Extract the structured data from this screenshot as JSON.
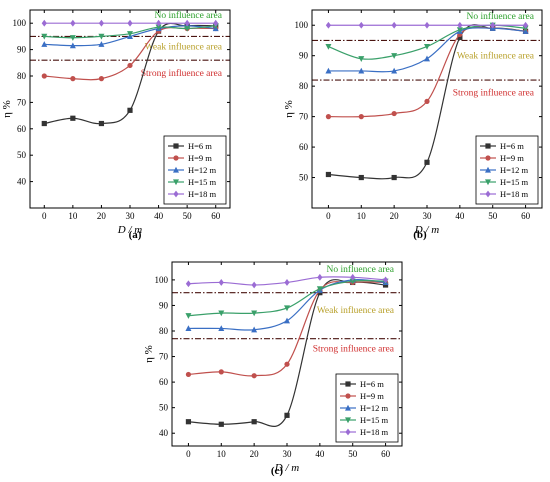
{
  "chart_data": [
    {
      "panel": "(a)",
      "type": "line",
      "x": [
        0,
        10,
        20,
        30,
        40,
        50,
        60
      ],
      "xlabel": "D / m",
      "ylabel": "η %",
      "xlim": [
        -5,
        65
      ],
      "ylim": [
        30,
        105
      ],
      "xticks": [
        0,
        10,
        20,
        30,
        40,
        50,
        60
      ],
      "yticks": [
        40,
        50,
        60,
        70,
        80,
        90,
        100
      ],
      "thresholds": [
        95,
        86
      ],
      "zones": [
        {
          "label": "No influence area",
          "color": "#2ca02c",
          "y": 102
        },
        {
          "label": "Weak influence area",
          "color": "#b8a02a",
          "y": 90
        },
        {
          "label": "Strong influence area",
          "color": "#d03030",
          "y": 80
        }
      ],
      "series": [
        {
          "name": "H=6 m",
          "color": "#333333",
          "marker": "square",
          "values": [
            62,
            64,
            62,
            67,
            97,
            99,
            99
          ]
        },
        {
          "name": "H=9 m",
          "color": "#c0504d",
          "marker": "circle",
          "values": [
            80,
            79,
            79,
            84,
            97,
            98,
            98
          ]
        },
        {
          "name": "H=12 m",
          "color": "#3a6fc4",
          "marker": "triangle",
          "values": [
            92,
            91.5,
            92,
            95,
            98,
            99,
            98
          ]
        },
        {
          "name": "H=15 m",
          "color": "#3aa06a",
          "marker": "triangle-down",
          "values": [
            95,
            94.5,
            95,
            96,
            98.5,
            98,
            99
          ]
        },
        {
          "name": "H=18 m",
          "color": "#9b6cd4",
          "marker": "diamond",
          "values": [
            100,
            100,
            100,
            100,
            100,
            100,
            100
          ]
        }
      ]
    },
    {
      "panel": "(b)",
      "type": "line",
      "x": [
        0,
        10,
        20,
        30,
        40,
        50,
        60
      ],
      "xlabel": "D / m",
      "ylabel": "η %",
      "xlim": [
        -5,
        65
      ],
      "ylim": [
        40,
        105
      ],
      "xticks": [
        0,
        10,
        20,
        30,
        40,
        50,
        60
      ],
      "yticks": [
        50,
        60,
        70,
        80,
        90,
        100
      ],
      "thresholds": [
        95,
        82
      ],
      "zones": [
        {
          "label": "No influence area",
          "color": "#2ca02c",
          "y": 102
        },
        {
          "label": "Weak influence area",
          "color": "#b8a02a",
          "y": 89
        },
        {
          "label": "Strong influence area",
          "color": "#d03030",
          "y": 77
        }
      ],
      "series": [
        {
          "name": "H=6 m",
          "color": "#333333",
          "marker": "square",
          "values": [
            51,
            50,
            50,
            55,
            96,
            99,
            98
          ]
        },
        {
          "name": "H=9 m",
          "color": "#c0504d",
          "marker": "circle",
          "values": [
            70,
            70,
            71,
            75,
            97,
            99,
            98
          ]
        },
        {
          "name": "H=12 m",
          "color": "#3a6fc4",
          "marker": "triangle",
          "values": [
            85,
            85,
            85,
            89,
            98,
            99,
            98
          ]
        },
        {
          "name": "H=15 m",
          "color": "#3aa06a",
          "marker": "triangle-down",
          "values": [
            93,
            89,
            90,
            93,
            98.5,
            100,
            99
          ]
        },
        {
          "name": "H=18 m",
          "color": "#9b6cd4",
          "marker": "diamond",
          "values": [
            100,
            100,
            100,
            100,
            100,
            100,
            100
          ]
        }
      ]
    },
    {
      "panel": "(c)",
      "type": "line",
      "x": [
        0,
        10,
        20,
        30,
        40,
        50,
        60
      ],
      "xlabel": "D / m",
      "ylabel": "η %",
      "xlim": [
        -5,
        65
      ],
      "ylim": [
        35,
        107
      ],
      "xticks": [
        0,
        10,
        20,
        30,
        40,
        50,
        60
      ],
      "yticks": [
        40,
        50,
        60,
        70,
        80,
        90,
        100
      ],
      "thresholds": [
        95,
        77
      ],
      "zones": [
        {
          "label": "No influence area",
          "color": "#2ca02c",
          "y": 103
        },
        {
          "label": "Weak influence area",
          "color": "#b8a02a",
          "y": 87
        },
        {
          "label": "Strong influence area",
          "color": "#d03030",
          "y": 72
        }
      ],
      "series": [
        {
          "name": "H=6 m",
          "color": "#333333",
          "marker": "square",
          "values": [
            44.5,
            43.5,
            44.5,
            47,
            95,
            99,
            98
          ]
        },
        {
          "name": "H=9 m",
          "color": "#c0504d",
          "marker": "circle",
          "values": [
            63,
            64,
            62.5,
            67,
            96,
            99,
            99
          ]
        },
        {
          "name": "H=12 m",
          "color": "#3a6fc4",
          "marker": "triangle",
          "values": [
            81,
            81,
            80.5,
            84,
            96,
            100,
            99
          ]
        },
        {
          "name": "H=15 m",
          "color": "#3aa06a",
          "marker": "triangle-down",
          "values": [
            86,
            87,
            87,
            89,
            96.5,
            99.5,
            99.5
          ]
        },
        {
          "name": "H=18 m",
          "color": "#9b6cd4",
          "marker": "diamond",
          "values": [
            98.5,
            99,
            98,
            99,
            101,
            101,
            100
          ]
        }
      ]
    }
  ]
}
